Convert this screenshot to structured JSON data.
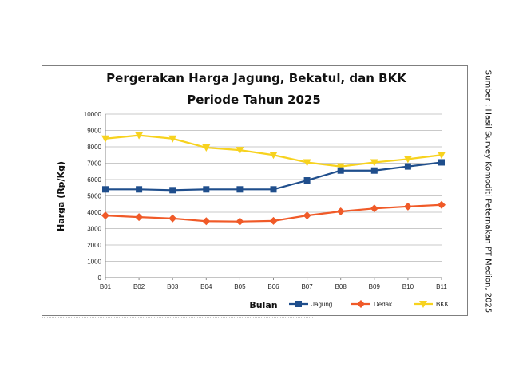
{
  "source_note": "Sumber : Hasil Survey Komoditi Peternakan PT Medion, 2025",
  "chart_data": {
    "type": "line",
    "title_line1": "Pergerakan Harga Jagung, Bekatul, dan BKK",
    "title_line2": "Periode Tahun 2025",
    "xlabel": "Bulan",
    "ylabel": "Harga (Rp/Kg)",
    "ylim": [
      0,
      10000
    ],
    "ytick_step": 1000,
    "grid": true,
    "legend_position": "bottom-right",
    "categories": [
      "B01",
      "B02",
      "B03",
      "B04",
      "B05",
      "B06",
      "B07",
      "B08",
      "B09",
      "B10",
      "B11"
    ],
    "series": [
      {
        "name": "Jagung",
        "color": "#1f4e8c",
        "marker": "square",
        "values": [
          5400,
          5400,
          5350,
          5400,
          5400,
          5400,
          5950,
          6550,
          6550,
          6800,
          7050
        ]
      },
      {
        "name": "Dedak",
        "color": "#f05a28",
        "marker": "diamond",
        "values": [
          3800,
          3700,
          3620,
          3450,
          3430,
          3470,
          3800,
          4050,
          4230,
          4350,
          4450
        ]
      },
      {
        "name": "BKK",
        "color": "#f7d21e",
        "marker": "triangle-down",
        "values": [
          8500,
          8700,
          8500,
          7950,
          7800,
          7500,
          7050,
          6800,
          7050,
          7250,
          7500
        ]
      }
    ]
  }
}
